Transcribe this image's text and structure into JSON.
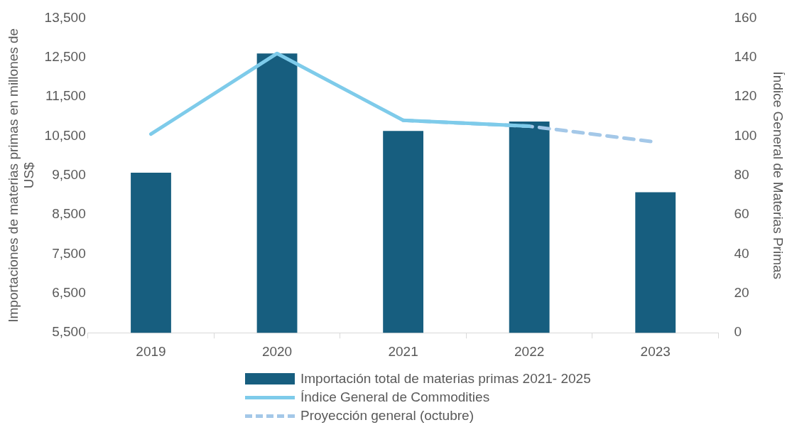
{
  "chart_data": {
    "type": "bar",
    "categories": [
      "2019",
      "2020",
      "2021",
      "2022",
      "2023"
    ],
    "ylabel": "Importaciones de materias primas en millones de US$",
    "y2label": "Índice General de Materias Primas",
    "ylim": [
      5500,
      13500
    ],
    "yticks": [
      {
        "value": 5500,
        "label": "5,500"
      },
      {
        "value": 6500,
        "label": "6,500"
      },
      {
        "value": 7500,
        "label": "7,500"
      },
      {
        "value": 8500,
        "label": "8,500"
      },
      {
        "value": 9500,
        "label": "9,500"
      },
      {
        "value": 10500,
        "label": "10,500"
      },
      {
        "value": 11500,
        "label": "11,500"
      },
      {
        "value": 12500,
        "label": "12,500"
      },
      {
        "value": 13500,
        "label": "13,500"
      }
    ],
    "y2lim": [
      0,
      160
    ],
    "y2ticks": [
      0,
      20,
      40,
      60,
      80,
      100,
      120,
      140,
      160
    ],
    "series": [
      {
        "name": "Importación total de materias primas 2021- 2025",
        "color": "#175e7f",
        "values": [
          9570,
          12600,
          10630,
          10870,
          9070
        ]
      },
      {
        "name": "Índice General de Commodities",
        "type": "line",
        "axis": "y2",
        "color": "#7ecbea",
        "line_style": "solid",
        "values": [
          101,
          142,
          108,
          105,
          null
        ]
      },
      {
        "name": "Proyección general (octubre)",
        "type": "line",
        "axis": "y2",
        "color": "#a4c8e8",
        "line_style": "dashed",
        "values": [
          null,
          null,
          108,
          105,
          97
        ]
      }
    ],
    "grid": false,
    "legend": "bottom",
    "marker": "none"
  }
}
